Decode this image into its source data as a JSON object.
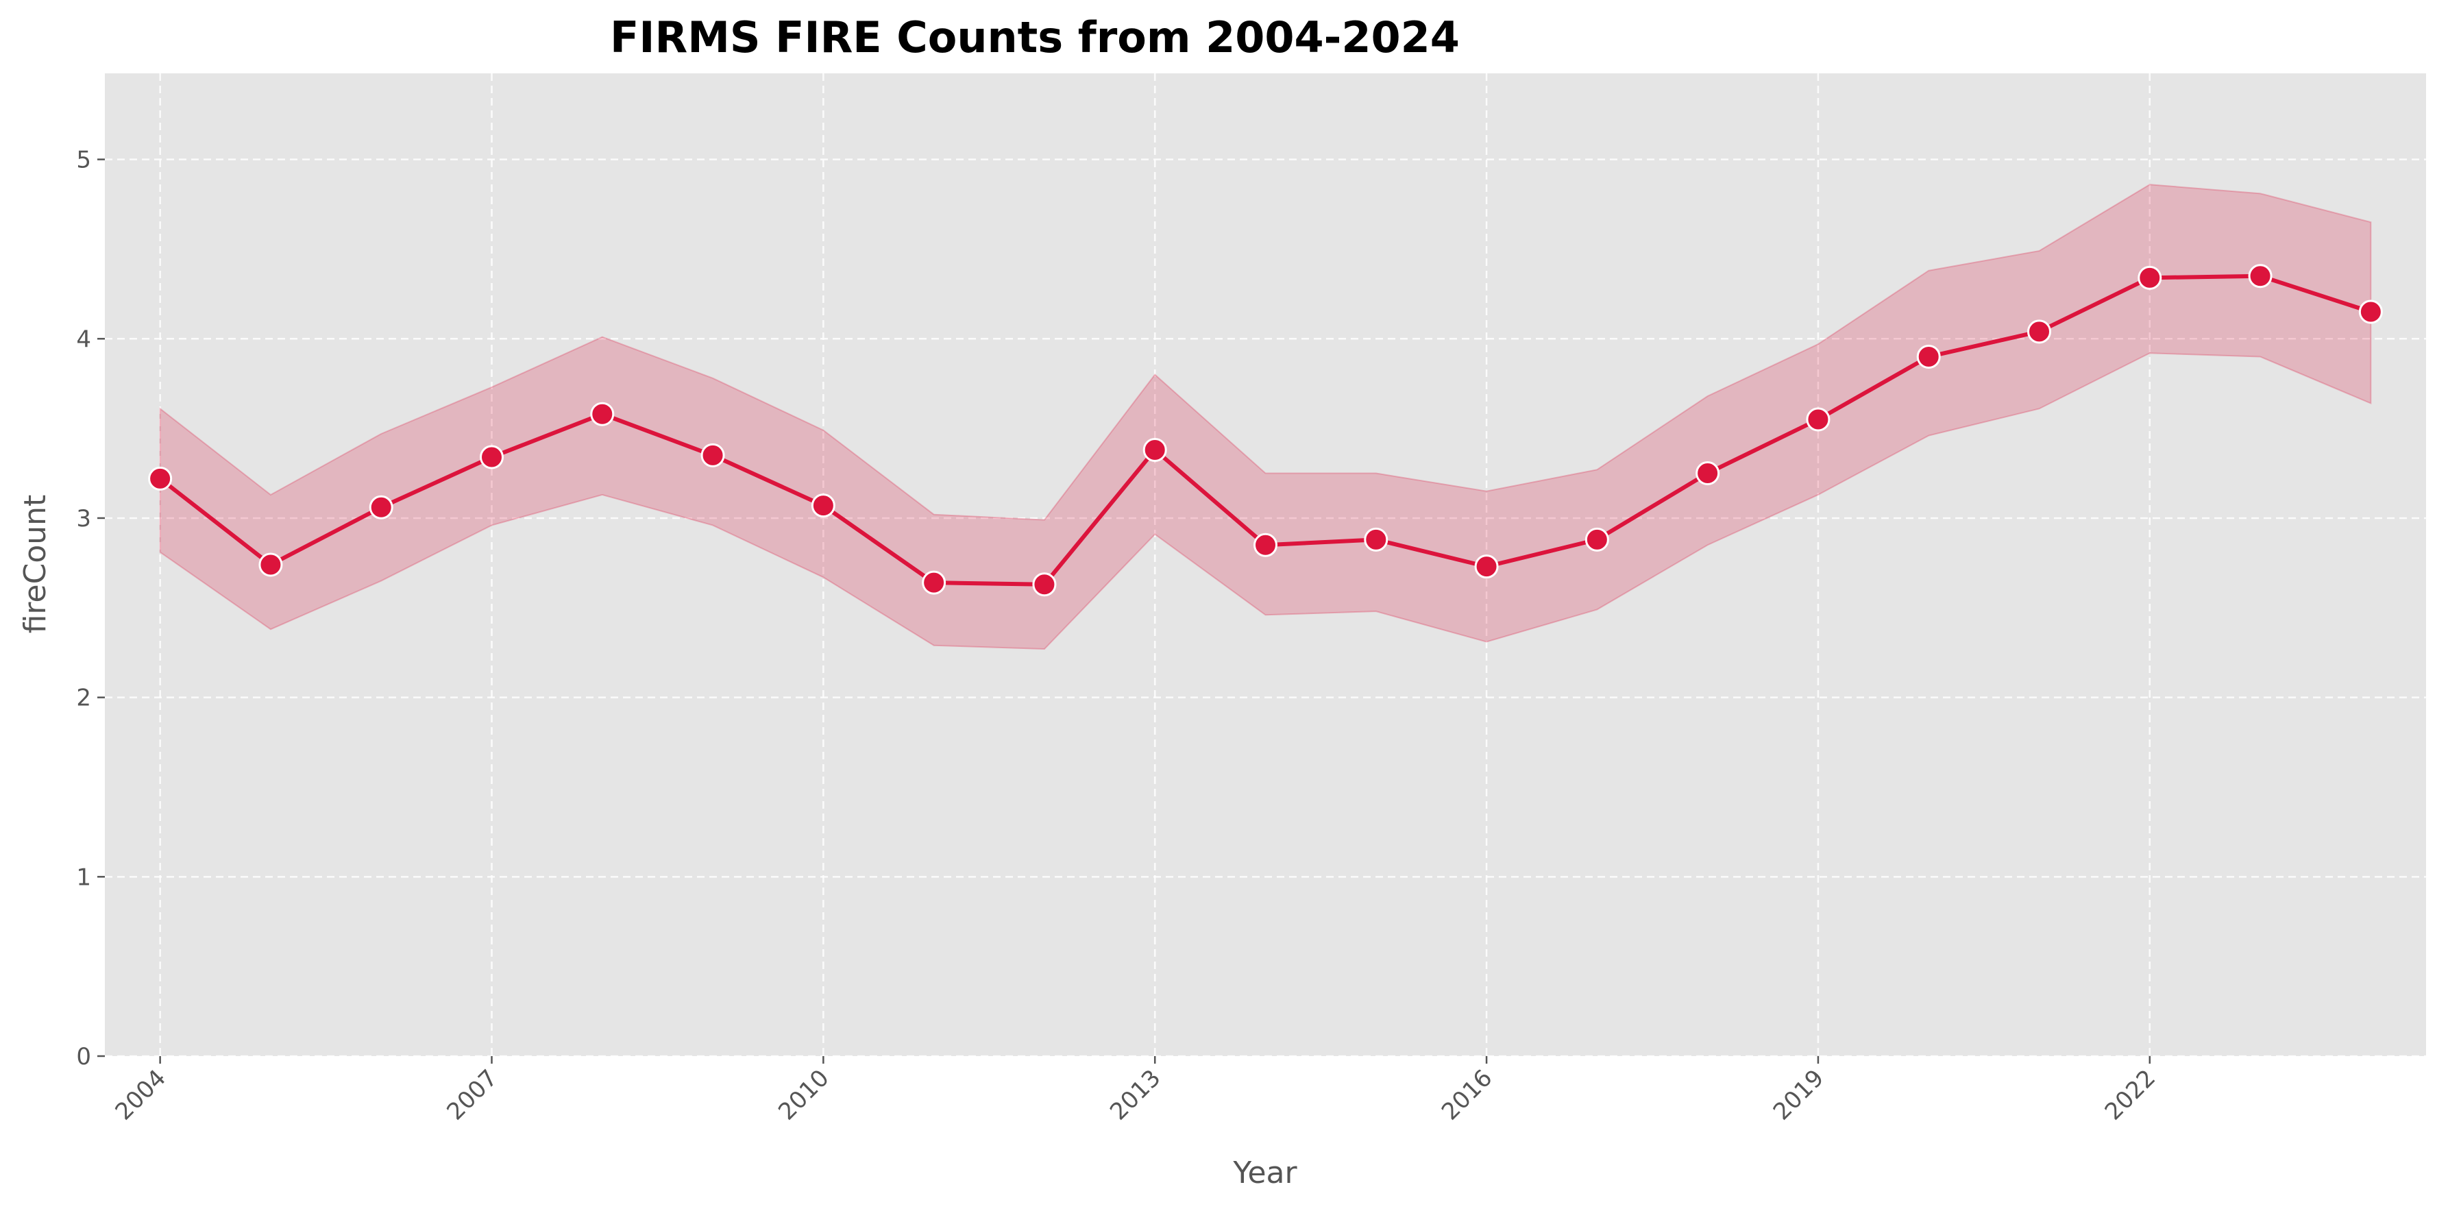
{
  "chart_data": {
    "type": "line",
    "title": "FIRMS FIRE Counts from 2004-2024",
    "xlabel": "Year",
    "ylabel": "fireCount",
    "x": [
      2004,
      2005,
      2006,
      2007,
      2008,
      2009,
      2010,
      2011,
      2012,
      2013,
      2014,
      2015,
      2016,
      2017,
      2018,
      2019,
      2020,
      2021,
      2022,
      2023,
      2024
    ],
    "x_ticks": [
      "2004",
      "2007",
      "2010",
      "2013",
      "2016",
      "2019",
      "2022"
    ],
    "y_ticks": [
      "0",
      "1",
      "2",
      "3",
      "4",
      "5"
    ],
    "xlim": [
      2003.5,
      2024.5
    ],
    "ylim": [
      0,
      5.48
    ],
    "series": [
      {
        "values": [
          3.22,
          2.74,
          3.06,
          3.34,
          3.58,
          3.35,
          3.07,
          2.64,
          2.63,
          3.38,
          2.85,
          2.88,
          2.73,
          2.88,
          3.25,
          3.55,
          3.9,
          4.04,
          4.34,
          4.35,
          4.15
        ],
        "ci_upper": [
          3.61,
          3.13,
          3.47,
          3.73,
          4.01,
          3.78,
          3.49,
          3.02,
          2.99,
          3.8,
          3.25,
          3.25,
          3.15,
          3.27,
          3.68,
          3.97,
          4.38,
          4.49,
          4.86,
          4.81,
          4.65
        ],
        "ci_lower": [
          2.81,
          2.38,
          2.65,
          2.96,
          3.13,
          2.96,
          2.67,
          2.29,
          2.27,
          2.91,
          2.46,
          2.48,
          2.31,
          2.49,
          2.85,
          3.13,
          3.46,
          3.61,
          3.92,
          3.9,
          3.64
        ]
      }
    ],
    "grid": true,
    "colors": {
      "line": "#dc143c",
      "band": "#dc143c",
      "background": "#e5e5e5",
      "marker_edge": "#ffffff"
    }
  }
}
